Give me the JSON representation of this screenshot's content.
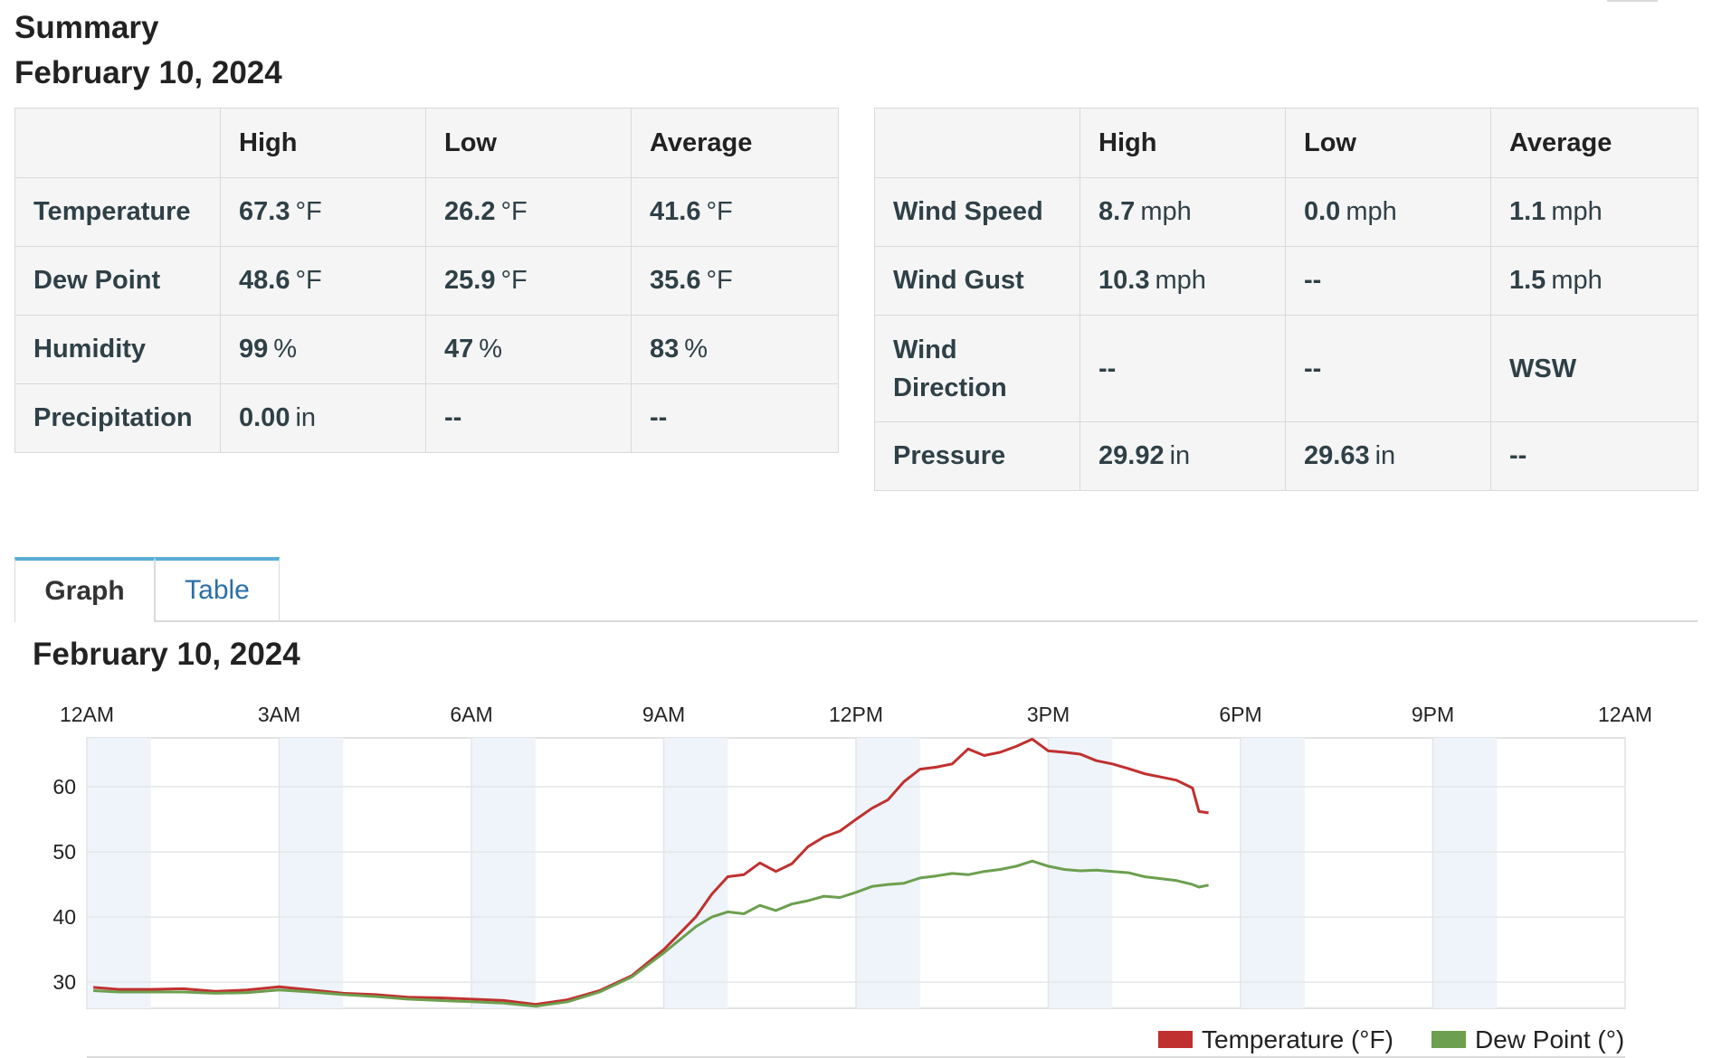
{
  "summary": {
    "title": "Summary",
    "date": "February 10, 2024"
  },
  "left_table": {
    "headers": [
      "",
      "High",
      "Low",
      "Average"
    ],
    "rows": [
      {
        "label": "Temperature",
        "high": {
          "v": "67.3",
          "u": "°F"
        },
        "low": {
          "v": "26.2",
          "u": "°F"
        },
        "avg": {
          "v": "41.6",
          "u": "°F"
        }
      },
      {
        "label": "Dew Point",
        "high": {
          "v": "48.6",
          "u": "°F"
        },
        "low": {
          "v": "25.9",
          "u": "°F"
        },
        "avg": {
          "v": "35.6",
          "u": "°F"
        }
      },
      {
        "label": "Humidity",
        "high": {
          "v": "99",
          "u": "%"
        },
        "low": {
          "v": "47",
          "u": "%"
        },
        "avg": {
          "v": "83",
          "u": "%"
        }
      },
      {
        "label": "Precipitation",
        "high": {
          "v": "0.00",
          "u": "in"
        },
        "low": {
          "v": "--",
          "u": ""
        },
        "avg": {
          "v": "--",
          "u": ""
        }
      }
    ]
  },
  "right_table": {
    "headers": [
      "",
      "High",
      "Low",
      "Average"
    ],
    "rows": [
      {
        "label": "Wind Speed",
        "high": {
          "v": "8.7",
          "u": "mph"
        },
        "low": {
          "v": "0.0",
          "u": "mph"
        },
        "avg": {
          "v": "1.1",
          "u": "mph"
        }
      },
      {
        "label": "Wind Gust",
        "high": {
          "v": "10.3",
          "u": "mph"
        },
        "low": {
          "v": "--",
          "u": ""
        },
        "avg": {
          "v": "1.5",
          "u": "mph"
        }
      },
      {
        "label": "Wind Direction",
        "high": {
          "v": "--",
          "u": ""
        },
        "low": {
          "v": "--",
          "u": ""
        },
        "avg": {
          "v": "WSW",
          "u": ""
        }
      },
      {
        "label": "Pressure",
        "high": {
          "v": "29.92",
          "u": "in"
        },
        "low": {
          "v": "29.63",
          "u": "in"
        },
        "avg": {
          "v": "--",
          "u": ""
        }
      }
    ]
  },
  "tabs": [
    {
      "label": "Graph",
      "active": true
    },
    {
      "label": "Table",
      "active": false
    }
  ],
  "graph_title": "February 10, 2024",
  "chart_data": {
    "type": "line",
    "x_tick_labels": [
      "12AM",
      "3AM",
      "6AM",
      "9AM",
      "12PM",
      "3PM",
      "6PM",
      "9PM",
      "12AM"
    ],
    "y_tick_labels": [
      "30",
      "40",
      "50",
      "60"
    ],
    "ylim": [
      26,
      67.5
    ],
    "xlim_hours": [
      0,
      24
    ],
    "grid": true,
    "legend_position": "bottom-right",
    "colors": {
      "Temperature (°F)": "#c0302f",
      "Dew Point (°)": "#6c9f4e",
      "band": "#eef4fa"
    },
    "series": [
      {
        "name": "Temperature (°F)",
        "points": [
          [
            0.1,
            29.2
          ],
          [
            0.5,
            28.9
          ],
          [
            1.0,
            28.9
          ],
          [
            1.5,
            29.0
          ],
          [
            2.0,
            28.6
          ],
          [
            2.5,
            28.8
          ],
          [
            3.0,
            29.3
          ],
          [
            3.5,
            28.8
          ],
          [
            4.0,
            28.3
          ],
          [
            4.5,
            28.1
          ],
          [
            5.0,
            27.7
          ],
          [
            5.5,
            27.6
          ],
          [
            6.0,
            27.4
          ],
          [
            6.5,
            27.2
          ],
          [
            7.0,
            26.6
          ],
          [
            7.5,
            27.3
          ],
          [
            8.0,
            28.7
          ],
          [
            8.5,
            31.0
          ],
          [
            9.0,
            35.0
          ],
          [
            9.5,
            40.0
          ],
          [
            9.75,
            43.5
          ],
          [
            10.0,
            46.2
          ],
          [
            10.25,
            46.5
          ],
          [
            10.5,
            48.3
          ],
          [
            10.75,
            47.0
          ],
          [
            11.0,
            48.2
          ],
          [
            11.25,
            50.8
          ],
          [
            11.5,
            52.3
          ],
          [
            11.75,
            53.2
          ],
          [
            12.0,
            55.0
          ],
          [
            12.25,
            56.7
          ],
          [
            12.5,
            58.0
          ],
          [
            12.75,
            60.8
          ],
          [
            13.0,
            62.7
          ],
          [
            13.25,
            63.0
          ],
          [
            13.5,
            63.5
          ],
          [
            13.75,
            65.8
          ],
          [
            14.0,
            64.8
          ],
          [
            14.25,
            65.3
          ],
          [
            14.5,
            66.2
          ],
          [
            14.75,
            67.3
          ],
          [
            15.0,
            65.5
          ],
          [
            15.25,
            65.3
          ],
          [
            15.5,
            65.0
          ],
          [
            15.75,
            64.0
          ],
          [
            16.0,
            63.5
          ],
          [
            16.25,
            62.8
          ],
          [
            16.5,
            62.0
          ],
          [
            16.75,
            61.5
          ],
          [
            17.0,
            61.0
          ],
          [
            17.25,
            59.8
          ],
          [
            17.35,
            56.2
          ],
          [
            17.5,
            56.0
          ]
        ]
      },
      {
        "name": "Dew Point (°)",
        "points": [
          [
            0.1,
            28.7
          ],
          [
            0.5,
            28.5
          ],
          [
            1.0,
            28.5
          ],
          [
            1.5,
            28.5
          ],
          [
            2.0,
            28.3
          ],
          [
            2.5,
            28.4
          ],
          [
            3.0,
            28.8
          ],
          [
            3.5,
            28.5
          ],
          [
            4.0,
            28.1
          ],
          [
            4.5,
            27.8
          ],
          [
            5.0,
            27.4
          ],
          [
            5.5,
            27.2
          ],
          [
            6.0,
            27.0
          ],
          [
            6.5,
            26.8
          ],
          [
            7.0,
            26.3
          ],
          [
            7.5,
            27.0
          ],
          [
            8.0,
            28.5
          ],
          [
            8.5,
            30.8
          ],
          [
            9.0,
            34.5
          ],
          [
            9.5,
            38.5
          ],
          [
            9.75,
            40.0
          ],
          [
            10.0,
            40.8
          ],
          [
            10.25,
            40.5
          ],
          [
            10.5,
            41.8
          ],
          [
            10.75,
            41.0
          ],
          [
            11.0,
            42.0
          ],
          [
            11.25,
            42.5
          ],
          [
            11.5,
            43.2
          ],
          [
            11.75,
            43.0
          ],
          [
            12.0,
            43.8
          ],
          [
            12.25,
            44.7
          ],
          [
            12.5,
            45.0
          ],
          [
            12.75,
            45.2
          ],
          [
            13.0,
            46.0
          ],
          [
            13.25,
            46.3
          ],
          [
            13.5,
            46.7
          ],
          [
            13.75,
            46.5
          ],
          [
            14.0,
            47.0
          ],
          [
            14.25,
            47.3
          ],
          [
            14.5,
            47.8
          ],
          [
            14.75,
            48.6
          ],
          [
            15.0,
            47.8
          ],
          [
            15.25,
            47.3
          ],
          [
            15.5,
            47.1
          ],
          [
            15.75,
            47.2
          ],
          [
            16.0,
            47.0
          ],
          [
            16.25,
            46.8
          ],
          [
            16.5,
            46.2
          ],
          [
            16.75,
            45.9
          ],
          [
            17.0,
            45.6
          ],
          [
            17.25,
            45.0
          ],
          [
            17.35,
            44.6
          ],
          [
            17.5,
            44.9
          ]
        ]
      }
    ]
  }
}
